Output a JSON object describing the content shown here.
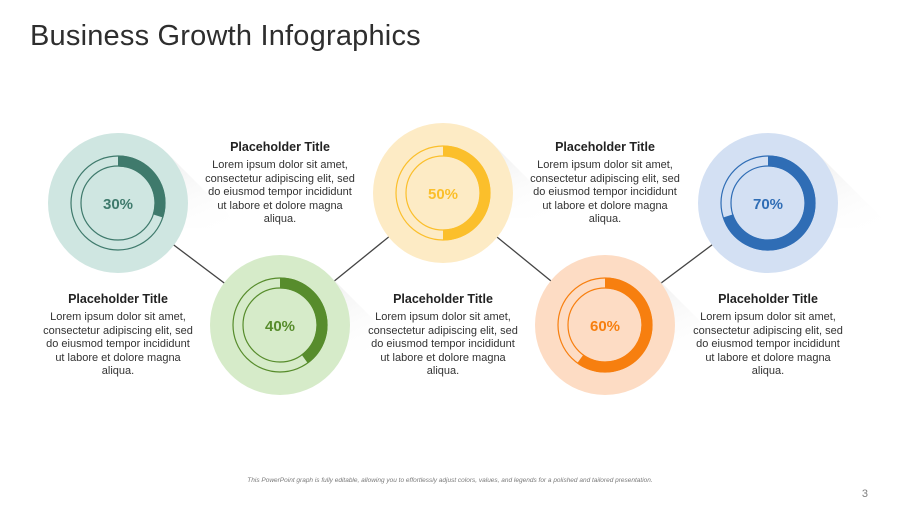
{
  "slide": {
    "title": "Business Growth Infographics",
    "footnote": "This PowerPoint graph is fully editable, allowing you to effortlessly adjust colors, values, and legends for a polished and tailored presentation.",
    "page_number": "3"
  },
  "chart_data": {
    "type": "donut",
    "title": "Business Growth Infographics",
    "items": [
      {
        "label": "30%",
        "value": 30,
        "color": "#3f7a6c",
        "track_color": "#cfe6e1",
        "title": "Placeholder Title",
        "text": "Lorem ipsum dolor sit amet, consectetur adipiscing elit, sed do eiusmod tempor incididunt ut labore et dolore magna aliqua."
      },
      {
        "label": "40%",
        "value": 40,
        "color": "#578c2c",
        "track_color": "#d6ebc9",
        "title": "Placeholder Title",
        "text": "Lorem ipsum dolor sit amet, consectetur adipiscing elit, sed do eiusmod tempor incididunt ut labore et dolore magna aliqua."
      },
      {
        "label": "50%",
        "value": 50,
        "color": "#fbbf2b",
        "track_color": "#fdebc5",
        "title": "Placeholder Title",
        "text": "Lorem ipsum dolor sit amet, consectetur adipiscing elit, sed do eiusmod tempor incididunt ut labore et dolore magna aliqua."
      },
      {
        "label": "60%",
        "value": 60,
        "color": "#f77f0f",
        "track_color": "#fddcc4",
        "title": "Placeholder Title",
        "text": "Lorem ipsum dolor sit amet, consectetur adipiscing elit, sed do eiusmod tempor incididunt ut labore et dolore magna aliqua."
      },
      {
        "label": "70%",
        "value": 70,
        "color": "#2f6db5",
        "track_color": "#d3e0f3",
        "title": "Placeholder Title",
        "text": "Lorem ipsum dolor sit amet, consectetur adipiscing elit, sed do eiusmod tempor incididunt ut labore et dolore magna aliqua."
      }
    ]
  }
}
